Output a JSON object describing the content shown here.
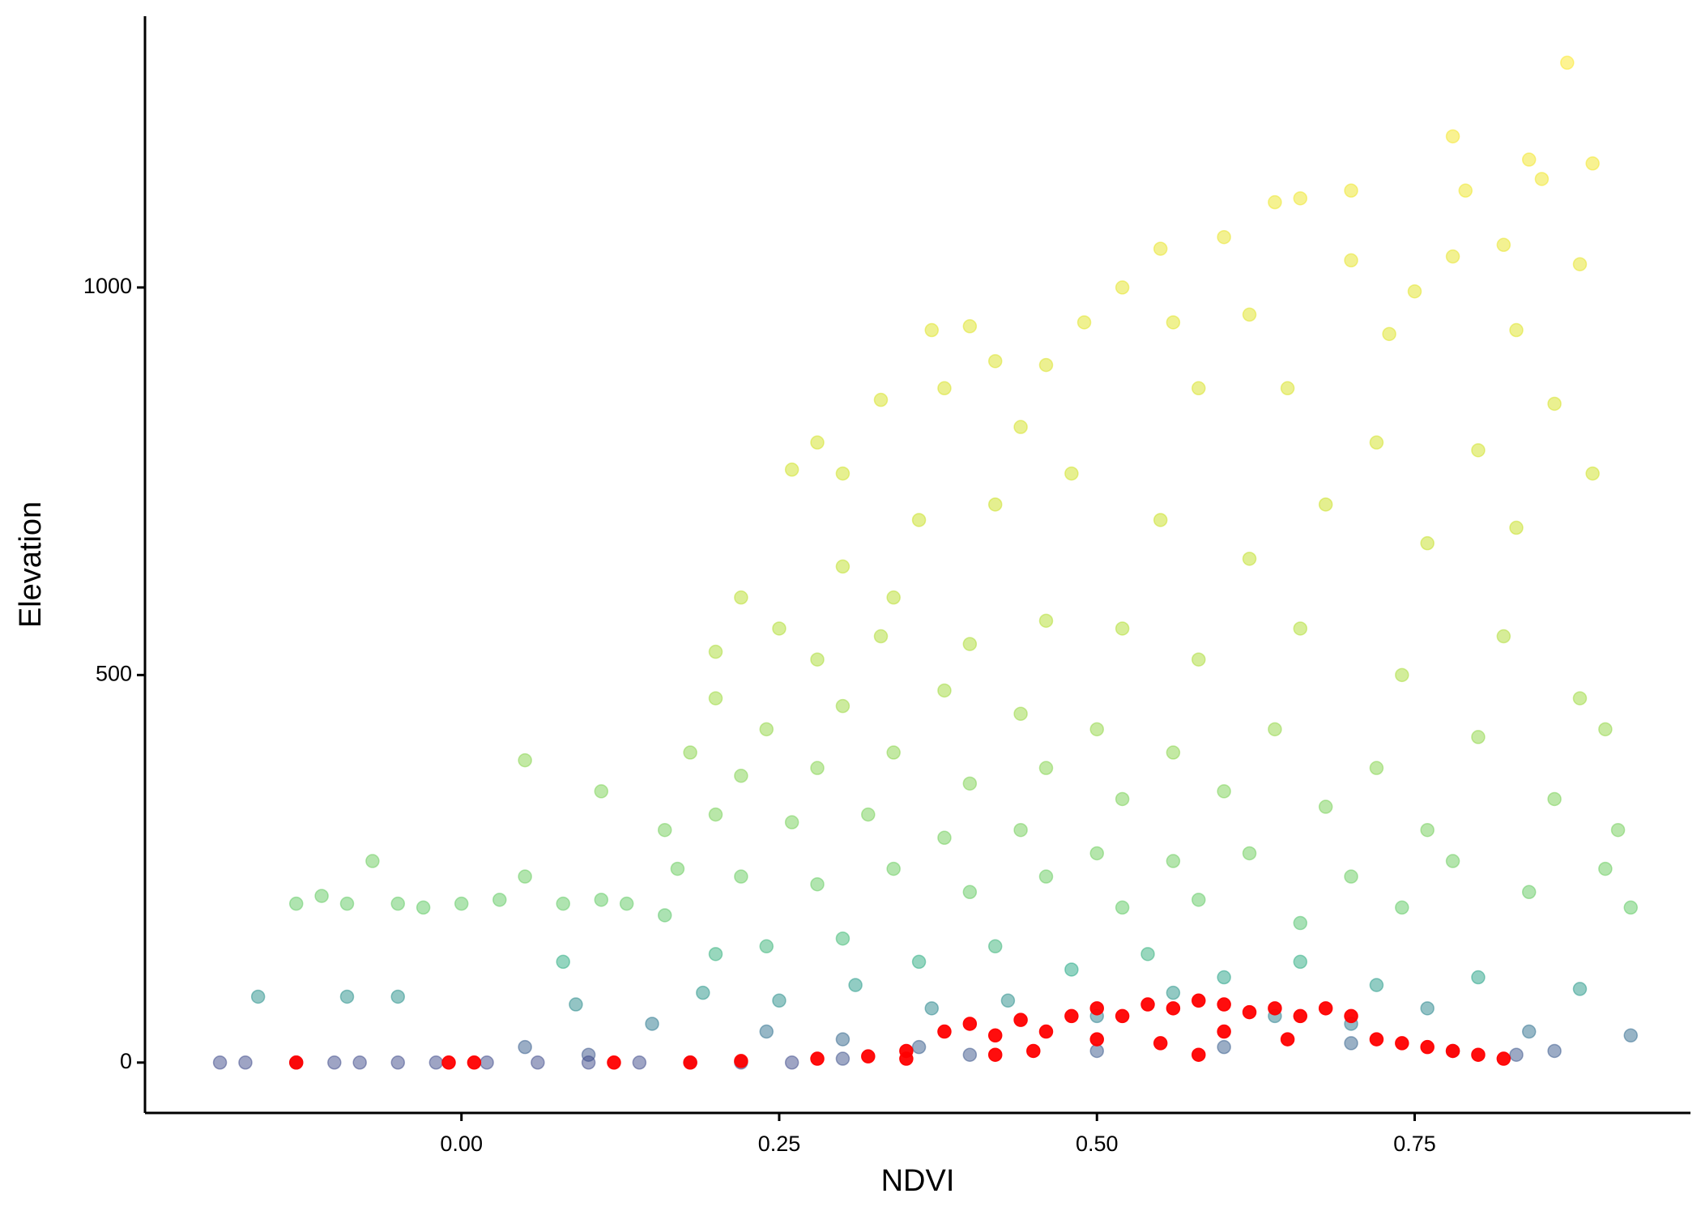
{
  "chart_data": {
    "type": "scatter",
    "x_label": "NDVI",
    "y_label": "Elevation",
    "xlim": [
      -0.249,
      0.967
    ],
    "ylim": [
      -65,
      1350
    ],
    "xticks": [
      {
        "value": 0,
        "label": "0.00"
      },
      {
        "value": 0.25,
        "label": "0.25"
      },
      {
        "value": 0.5,
        "label": "0.50"
      },
      {
        "value": 0.75,
        "label": "0.75"
      }
    ],
    "yticks": [
      0,
      500,
      1000
    ],
    "grid": false,
    "series": [
      {
        "color_scale": [
          {
            "value": 0,
            "color": "#3e4a89"
          },
          {
            "value": 50,
            "color": "#2a788e"
          },
          {
            "value": 120,
            "color": "#22a884"
          },
          {
            "value": 200,
            "color": "#5ec962"
          },
          {
            "value": 350,
            "color": "#7ad151"
          },
          {
            "value": 500,
            "color": "#a5db36"
          },
          {
            "value": 700,
            "color": "#c8e020"
          },
          {
            "value": 1300,
            "color": "#fde725"
          }
        ],
        "opacity": 0.5,
        "x": [
          0.87,
          0.78,
          0.84,
          0.89,
          0.85,
          0.79,
          0.66,
          0.7,
          0.64,
          0.6,
          0.55,
          0.82,
          0.78,
          0.7,
          0.52,
          0.75,
          0.88,
          0.37,
          0.4,
          0.49,
          0.56,
          0.62,
          0.73,
          0.83,
          0.42,
          0.46,
          0.33,
          0.28,
          0.26,
          0.3,
          0.38,
          0.44,
          0.58,
          0.65,
          0.72,
          0.8,
          0.86,
          0.89,
          0.36,
          0.42,
          0.48,
          0.55,
          0.62,
          0.68,
          0.76,
          0.83,
          0.3,
          0.34,
          0.22,
          0.25,
          0.2,
          0.28,
          0.33,
          0.4,
          0.46,
          0.52,
          0.58,
          0.66,
          0.74,
          0.82,
          0.88,
          0.2,
          0.24,
          0.3,
          0.38,
          0.44,
          0.5,
          0.56,
          0.64,
          0.72,
          0.8,
          0.9,
          0.18,
          0.22,
          0.28,
          0.34,
          0.4,
          0.46,
          0.52,
          0.6,
          0.68,
          0.76,
          0.86,
          0.91,
          0.16,
          0.2,
          0.26,
          0.32,
          0.38,
          0.44,
          0.5,
          0.56,
          0.62,
          0.7,
          0.78,
          0.9,
          0.17,
          0.22,
          0.28,
          0.34,
          0.4,
          0.46,
          0.52,
          0.58,
          0.66,
          0.74,
          0.84,
          0.92,
          -0.13,
          -0.11,
          -0.09,
          -0.07,
          -0.05,
          -0.03,
          0.0,
          0.03,
          0.05,
          0.08,
          0.11,
          0.13,
          0.16,
          0.05,
          0.11,
          -0.16,
          -0.09,
          -0.05,
          0.08,
          0.09,
          0.2,
          0.24,
          0.3,
          0.36,
          0.42,
          0.48,
          0.54,
          0.6,
          0.66,
          0.72,
          0.8,
          0.88,
          0.19,
          0.25,
          0.31,
          0.37,
          0.43,
          0.5,
          0.56,
          0.64,
          0.7,
          0.76,
          0.84,
          0.92,
          0.24,
          0.3,
          0.36,
          0.15,
          0.1,
          0.05,
          -0.19,
          -0.17,
          -0.13,
          -0.1,
          -0.08,
          -0.05,
          -0.02,
          0.02,
          0.06,
          0.1,
          0.14,
          0.18,
          0.22,
          0.26,
          0.3,
          0.4,
          0.5,
          0.6,
          0.7,
          0.78,
          0.83,
          0.86
        ],
        "values": [
          1290,
          1195,
          1165,
          1160,
          1140,
          1125,
          1115,
          1125,
          1110,
          1065,
          1050,
          1055,
          1040,
          1035,
          1000,
          995,
          1030,
          945,
          950,
          955,
          955,
          965,
          940,
          945,
          905,
          900,
          855,
          800,
          765,
          760,
          870,
          820,
          870,
          870,
          800,
          790,
          850,
          760,
          700,
          720,
          760,
          700,
          650,
          720,
          670,
          690,
          640,
          600,
          600,
          560,
          530,
          520,
          550,
          540,
          570,
          560,
          520,
          560,
          500,
          550,
          470,
          470,
          430,
          460,
          480,
          450,
          430,
          400,
          430,
          380,
          420,
          430,
          400,
          370,
          380,
          400,
          360,
          380,
          340,
          350,
          330,
          300,
          340,
          300,
          300,
          320,
          310,
          320,
          290,
          300,
          270,
          260,
          270,
          240,
          260,
          250,
          250,
          240,
          230,
          250,
          220,
          240,
          200,
          210,
          180,
          200,
          220,
          200,
          205,
          215,
          205,
          260,
          205,
          200,
          205,
          210,
          240,
          205,
          210,
          205,
          190,
          390,
          350,
          85,
          85,
          85,
          130,
          75,
          140,
          150,
          160,
          130,
          150,
          120,
          140,
          110,
          130,
          100,
          110,
          95,
          90,
          80,
          100,
          70,
          80,
          60,
          90,
          60,
          50,
          70,
          40,
          35,
          40,
          30,
          20,
          50,
          10,
          20,
          0,
          0,
          0,
          0,
          0,
          0,
          0,
          0,
          0,
          0,
          0,
          0,
          0,
          0,
          5,
          10,
          15,
          20,
          25,
          15,
          10,
          15
        ]
      },
      {
        "color": "#ff0000",
        "opacity": 0.95,
        "x": [
          -0.13,
          -0.01,
          0.01,
          0.12,
          0.18,
          0.22,
          0.28,
          0.32,
          0.35,
          0.38,
          0.4,
          0.42,
          0.44,
          0.46,
          0.48,
          0.5,
          0.52,
          0.54,
          0.56,
          0.58,
          0.6,
          0.62,
          0.64,
          0.66,
          0.68,
          0.7,
          0.72,
          0.74,
          0.76,
          0.78,
          0.8,
          0.82,
          0.45,
          0.55,
          0.65,
          0.35,
          0.5,
          0.6,
          0.42,
          0.58
        ],
        "values": [
          0,
          0,
          0,
          0,
          0,
          2,
          5,
          8,
          15,
          40,
          50,
          35,
          55,
          40,
          60,
          70,
          60,
          75,
          70,
          80,
          75,
          65,
          70,
          60,
          70,
          60,
          30,
          25,
          20,
          15,
          10,
          5,
          15,
          25,
          30,
          5,
          30,
          40,
          10,
          10
        ]
      }
    ]
  }
}
